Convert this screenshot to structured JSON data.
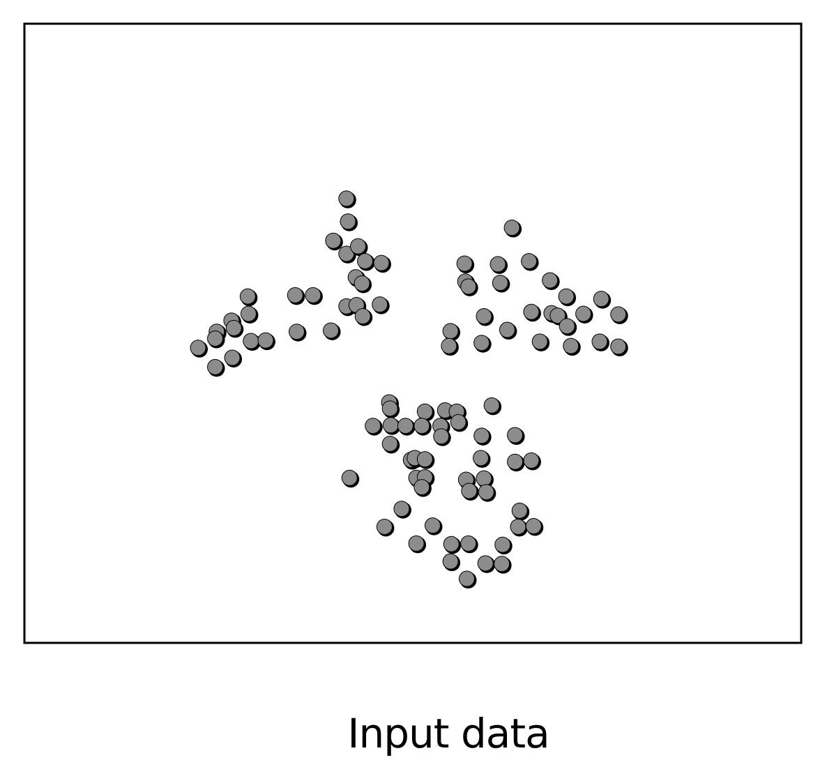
{
  "caption": "Input data",
  "chart_data": {
    "type": "scatter",
    "title": "",
    "xlabel": "",
    "ylabel": "",
    "xlim": [
      0,
      100
    ],
    "ylim": [
      0,
      100
    ],
    "grid": false,
    "axes_ticks": false,
    "colors": {
      "marker_fill": "#8c8c8c",
      "marker_edge": "#000000",
      "frame": "#000000"
    },
    "points": [
      {
        "x": 41.5,
        "y": 71.7
      },
      {
        "x": 41.7,
        "y": 68.0
      },
      {
        "x": 39.8,
        "y": 64.9
      },
      {
        "x": 41.5,
        "y": 62.8
      },
      {
        "x": 43.0,
        "y": 64.0
      },
      {
        "x": 43.9,
        "y": 61.6
      },
      {
        "x": 46.0,
        "y": 61.3
      },
      {
        "x": 42.7,
        "y": 59.0
      },
      {
        "x": 43.5,
        "y": 58.0
      },
      {
        "x": 41.5,
        "y": 54.3
      },
      {
        "x": 42.8,
        "y": 54.5
      },
      {
        "x": 43.6,
        "y": 52.7
      },
      {
        "x": 45.8,
        "y": 54.6
      },
      {
        "x": 34.9,
        "y": 56.1
      },
      {
        "x": 37.2,
        "y": 56.1
      },
      {
        "x": 35.1,
        "y": 50.2
      },
      {
        "x": 39.5,
        "y": 50.4
      },
      {
        "x": 28.8,
        "y": 55.9
      },
      {
        "x": 28.9,
        "y": 53.1
      },
      {
        "x": 26.7,
        "y": 52.0
      },
      {
        "x": 27.0,
        "y": 50.8
      },
      {
        "x": 24.8,
        "y": 50.2
      },
      {
        "x": 24.6,
        "y": 49.1
      },
      {
        "x": 29.2,
        "y": 48.7
      },
      {
        "x": 31.1,
        "y": 48.8
      },
      {
        "x": 22.4,
        "y": 47.6
      },
      {
        "x": 26.8,
        "y": 46.0
      },
      {
        "x": 24.6,
        "y": 44.5
      },
      {
        "x": 62.8,
        "y": 67.0
      },
      {
        "x": 56.7,
        "y": 61.2
      },
      {
        "x": 61.0,
        "y": 61.1
      },
      {
        "x": 65.0,
        "y": 61.6
      },
      {
        "x": 56.8,
        "y": 58.3
      },
      {
        "x": 57.2,
        "y": 57.5
      },
      {
        "x": 61.3,
        "y": 58.1
      },
      {
        "x": 67.7,
        "y": 58.5
      },
      {
        "x": 69.8,
        "y": 55.9
      },
      {
        "x": 74.3,
        "y": 55.5
      },
      {
        "x": 72.0,
        "y": 53.1
      },
      {
        "x": 65.3,
        "y": 53.4
      },
      {
        "x": 67.9,
        "y": 53.2
      },
      {
        "x": 68.7,
        "y": 52.8
      },
      {
        "x": 76.5,
        "y": 53.0
      },
      {
        "x": 59.2,
        "y": 52.7
      },
      {
        "x": 69.9,
        "y": 51.1
      },
      {
        "x": 54.9,
        "y": 50.3
      },
      {
        "x": 62.2,
        "y": 50.5
      },
      {
        "x": 54.7,
        "y": 47.9
      },
      {
        "x": 58.9,
        "y": 48.4
      },
      {
        "x": 66.4,
        "y": 48.6
      },
      {
        "x": 70.4,
        "y": 47.9
      },
      {
        "x": 74.1,
        "y": 48.6
      },
      {
        "x": 76.5,
        "y": 47.8
      },
      {
        "x": 47.0,
        "y": 38.8
      },
      {
        "x": 47.1,
        "y": 37.8
      },
      {
        "x": 51.6,
        "y": 37.3
      },
      {
        "x": 54.2,
        "y": 37.5
      },
      {
        "x": 55.7,
        "y": 37.3
      },
      {
        "x": 60.2,
        "y": 38.3
      },
      {
        "x": 44.9,
        "y": 35.0
      },
      {
        "x": 47.2,
        "y": 35.1
      },
      {
        "x": 49.1,
        "y": 35.0
      },
      {
        "x": 51.2,
        "y": 35.0
      },
      {
        "x": 53.6,
        "y": 35.0
      },
      {
        "x": 55.9,
        "y": 35.6
      },
      {
        "x": 53.7,
        "y": 33.3
      },
      {
        "x": 58.9,
        "y": 33.4
      },
      {
        "x": 63.2,
        "y": 33.5
      },
      {
        "x": 47.1,
        "y": 32.1
      },
      {
        "x": 49.8,
        "y": 29.5
      },
      {
        "x": 50.3,
        "y": 29.8
      },
      {
        "x": 51.6,
        "y": 29.6
      },
      {
        "x": 58.8,
        "y": 29.8
      },
      {
        "x": 63.2,
        "y": 29.2
      },
      {
        "x": 65.3,
        "y": 29.4
      },
      {
        "x": 50.5,
        "y": 26.6
      },
      {
        "x": 51.6,
        "y": 26.7
      },
      {
        "x": 51.2,
        "y": 25.1
      },
      {
        "x": 41.9,
        "y": 26.6
      },
      {
        "x": 56.9,
        "y": 26.3
      },
      {
        "x": 59.2,
        "y": 26.5
      },
      {
        "x": 57.3,
        "y": 24.5
      },
      {
        "x": 59.5,
        "y": 24.3
      },
      {
        "x": 48.6,
        "y": 21.6
      },
      {
        "x": 63.8,
        "y": 21.3
      },
      {
        "x": 46.4,
        "y": 18.7
      },
      {
        "x": 52.6,
        "y": 18.9
      },
      {
        "x": 63.6,
        "y": 18.7
      },
      {
        "x": 65.6,
        "y": 18.8
      },
      {
        "x": 50.5,
        "y": 16.0
      },
      {
        "x": 55.0,
        "y": 15.9
      },
      {
        "x": 57.2,
        "y": 16.0
      },
      {
        "x": 61.6,
        "y": 15.8
      },
      {
        "x": 54.9,
        "y": 13.1
      },
      {
        "x": 59.4,
        "y": 12.8
      },
      {
        "x": 61.5,
        "y": 12.7
      },
      {
        "x": 57.0,
        "y": 10.3
      }
    ]
  }
}
